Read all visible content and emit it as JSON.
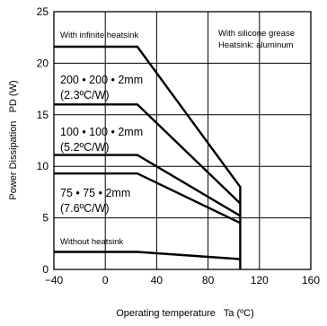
{
  "chart_data": {
    "type": "line",
    "xlabel": "Operating temperature   Ta (ºC)",
    "ylabel": "Power Dissipation   PD (W)",
    "xlim": [
      -40,
      160
    ],
    "ylim": [
      0,
      25
    ],
    "xticks": [
      -40,
      0,
      40,
      80,
      120,
      160
    ],
    "yticks": [
      0,
      5,
      10,
      15,
      20,
      25
    ],
    "grid": true,
    "annotations": [
      "With silicone grease",
      "Heatsink: aluminum"
    ],
    "series": [
      {
        "name": "With infinite heatsink",
        "x": [
          -40,
          25,
          105,
          105
        ],
        "y": [
          21.6,
          21.6,
          8.0,
          0
        ]
      },
      {
        "name": "200 • 200 • 2mm",
        "sublabel": "(2.3ºC/W)",
        "x": [
          -40,
          25,
          105
        ],
        "y": [
          16.0,
          16.0,
          6.4
        ]
      },
      {
        "name": "100 • 100 • 2mm",
        "sublabel": "(5.2ºC/W)",
        "x": [
          -40,
          25,
          105
        ],
        "y": [
          11.1,
          11.1,
          5.2
        ]
      },
      {
        "name": "75 • 75 • 2mm",
        "sublabel": "(7.6ºC/W)",
        "x": [
          -40,
          25,
          105
        ],
        "y": [
          9.3,
          9.3,
          4.5
        ]
      },
      {
        "name": "Without heatsink",
        "x": [
          -40,
          25,
          105
        ],
        "y": [
          1.7,
          1.7,
          1.0
        ]
      }
    ]
  }
}
